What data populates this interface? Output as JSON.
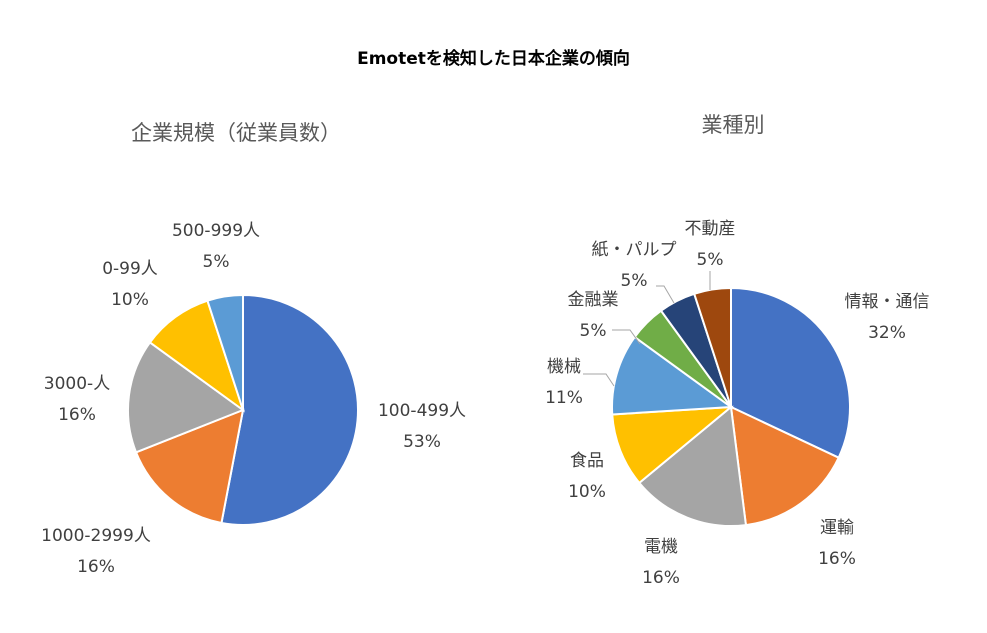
{
  "title": "Emotetを検知した日本企業の傾向",
  "chart_data": [
    {
      "type": "pie",
      "title": "企業規模（従業員数）",
      "slices": [
        {
          "label": "100-499人",
          "value": 53,
          "pct": "53%",
          "color": "#4472C4"
        },
        {
          "label": "1000-2999人",
          "value": 16,
          "pct": "16%",
          "color": "#ED7D31"
        },
        {
          "label": "3000-人",
          "value": 16,
          "pct": "16%",
          "color": "#A5A5A5"
        },
        {
          "label": "0-99人",
          "value": 10,
          "pct": "10%",
          "color": "#FFC000"
        },
        {
          "label": "500-999人",
          "value": 5,
          "pct": "5%",
          "color": "#5B9BD5"
        }
      ]
    },
    {
      "type": "pie",
      "title": "業種別",
      "slices": [
        {
          "label": "情報・通信",
          "value": 32,
          "pct": "32%",
          "color": "#4472C4"
        },
        {
          "label": "運輸",
          "value": 16,
          "pct": "16%",
          "color": "#ED7D31"
        },
        {
          "label": "電機",
          "value": 16,
          "pct": "16%",
          "color": "#A5A5A5"
        },
        {
          "label": "食品",
          "value": 10,
          "pct": "10%",
          "color": "#FFC000"
        },
        {
          "label": "機械",
          "value": 11,
          "pct": "11%",
          "color": "#5B9BD5"
        },
        {
          "label": "金融業",
          "value": 5,
          "pct": "5%",
          "color": "#70AD47"
        },
        {
          "label": "紙・パルプ",
          "value": 5,
          "pct": "5%",
          "color": "#264478"
        },
        {
          "label": "不動産",
          "value": 5,
          "pct": "5%",
          "color": "#9E480E"
        }
      ]
    }
  ]
}
